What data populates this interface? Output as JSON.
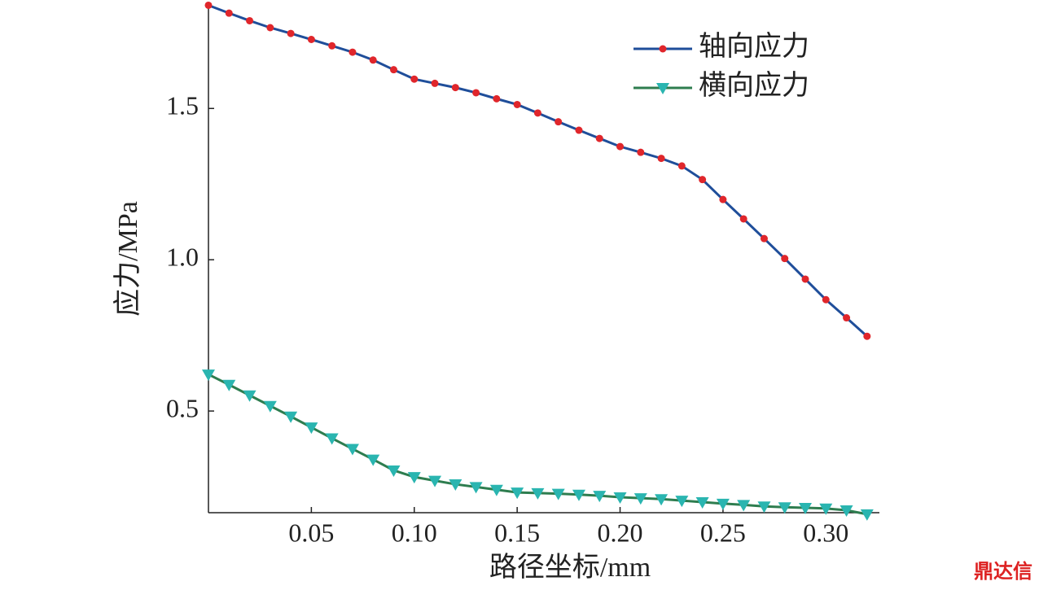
{
  "chart_data": {
    "type": "line",
    "xlabel": "路径坐标/mm",
    "ylabel": "应力/MPa",
    "x": [
      0,
      0.01,
      0.02,
      0.03,
      0.04,
      0.05,
      0.06,
      0.07,
      0.08,
      0.09,
      0.1,
      0.11,
      0.12,
      0.13,
      0.14,
      0.15,
      0.16,
      0.17,
      0.18,
      0.19,
      0.2,
      0.21,
      0.22,
      0.23,
      0.24,
      0.25,
      0.26,
      0.27,
      0.28,
      0.29,
      0.3,
      0.31,
      0.32
    ],
    "series": [
      {
        "name": "轴向应力",
        "color": "#1f4e9a",
        "marker_color": "#e0262b",
        "marker": "circle",
        "values": [
          1.841,
          1.815,
          1.79,
          1.767,
          1.748,
          1.728,
          1.707,
          1.686,
          1.66,
          1.628,
          1.597,
          1.583,
          1.569,
          1.552,
          1.532,
          1.513,
          1.485,
          1.456,
          1.428,
          1.401,
          1.374,
          1.355,
          1.335,
          1.31,
          1.265,
          1.199,
          1.135,
          1.07,
          1.004,
          0.936,
          0.868,
          0.808,
          0.747
        ]
      },
      {
        "name": "横向应力",
        "color": "#2e7d4f",
        "marker_color": "#2ab5b0",
        "marker": "triangle-down",
        "values": [
          0.621,
          0.587,
          0.552,
          0.517,
          0.482,
          0.446,
          0.41,
          0.375,
          0.34,
          0.304,
          0.282,
          0.27,
          0.258,
          0.249,
          0.24,
          0.231,
          0.229,
          0.227,
          0.224,
          0.22,
          0.215,
          0.212,
          0.209,
          0.204,
          0.199,
          0.194,
          0.19,
          0.185,
          0.182,
          0.18,
          0.178,
          0.172,
          0.159
        ]
      }
    ],
    "xlim": [
      0,
      0.326
    ],
    "ylim": [
      0.164,
      1.845
    ],
    "xticks": [
      0.05,
      {
        "value": 0.1,
        "label": "0.10"
      },
      0.15,
      {
        "value": 0.2,
        "label": "0.20"
      },
      0.25,
      {
        "value": 0.3,
        "label": "0.30"
      }
    ],
    "yticks": [
      0.5,
      {
        "value": 1.0,
        "label": "1.0"
      },
      1.5
    ],
    "legend": "upper right",
    "grid": false
  },
  "watermark": "鼎达信"
}
